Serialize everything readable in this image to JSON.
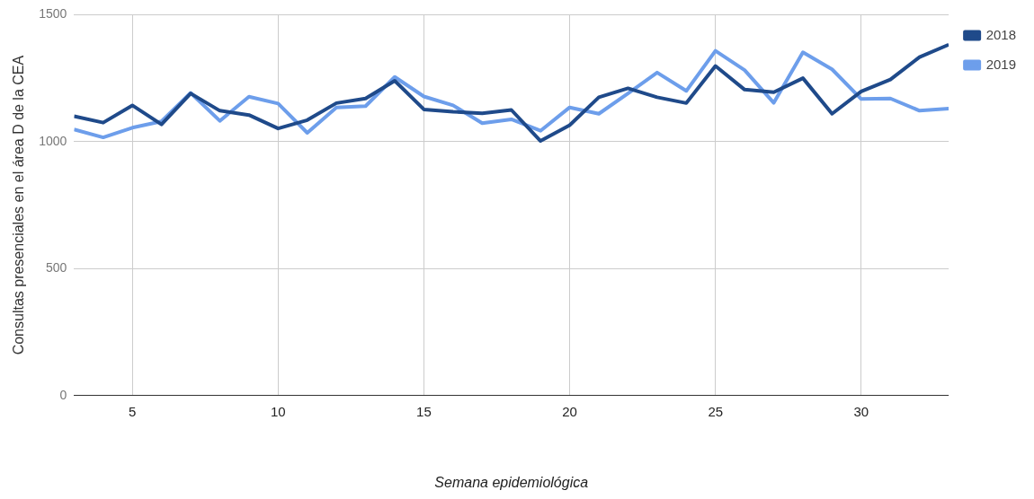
{
  "chart_data": {
    "type": "line",
    "xlabel": "Semana epidemiológica",
    "ylabel": "Consultas presenciales en el área D de la CEA",
    "x": [
      3,
      4,
      5,
      6,
      7,
      8,
      9,
      10,
      11,
      12,
      13,
      14,
      15,
      16,
      17,
      18,
      19,
      20,
      21,
      22,
      23,
      24,
      25,
      26,
      27,
      28,
      29,
      30,
      31,
      32,
      33
    ],
    "series": [
      {
        "name": "2018",
        "color": "#1f4a8a",
        "values": [
          1100,
          1075,
          1143,
          1068,
          1190,
          1122,
          1105,
          1052,
          1085,
          1152,
          1170,
          1240,
          1127,
          1118,
          1112,
          1125,
          1003,
          1065,
          1175,
          1210,
          1175,
          1152,
          1298,
          1205,
          1195,
          1250,
          1110,
          1198,
          1245,
          1333,
          1382
        ]
      },
      {
        "name": "2019",
        "color": "#6d9eeb",
        "values": [
          1048,
          1017,
          1055,
          1080,
          1192,
          1082,
          1177,
          1150,
          1035,
          1135,
          1140,
          1255,
          1178,
          1143,
          1073,
          1088,
          1043,
          1135,
          1110,
          1190,
          1272,
          1200,
          1358,
          1282,
          1153,
          1352,
          1285,
          1168,
          1170,
          1122,
          1130
        ]
      }
    ],
    "xlim": [
      3,
      33
    ],
    "xticks": [
      5,
      10,
      15,
      20,
      25,
      30
    ],
    "ylim": [
      0,
      1500
    ],
    "yticks": [
      0,
      500,
      1000,
      1500
    ],
    "grid": true,
    "legend": "top right",
    "marker": "none",
    "line_style": "solid"
  }
}
